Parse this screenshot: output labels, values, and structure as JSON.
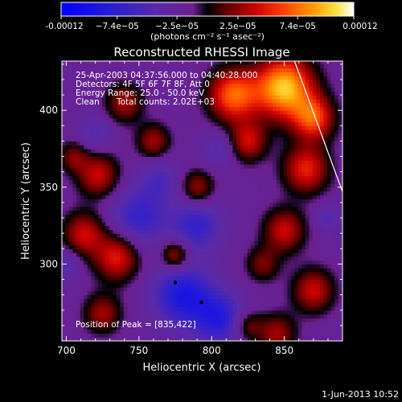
{
  "chart_data": {
    "type": "heatmap",
    "title": "Reconstructed RHESSI Image",
    "xlabel": "Heliocentric X (arcsec)",
    "ylabel": "Heliocentric Y (arcsec)",
    "xlim": [
      697,
      890
    ],
    "ylim": [
      250,
      432
    ],
    "x_ticks": [
      700,
      750,
      800,
      850
    ],
    "y_ticks": [
      300,
      350,
      400
    ],
    "colorbar": {
      "label": "(photons cm⁻² s⁻¹ asec⁻²)",
      "range": [
        -0.00012,
        0.00012
      ],
      "tick_labels": [
        "-0.00012",
        "−7.4e−05",
        "−2.5e−05",
        "2.5e−05",
        "7.4e−05",
        "0.00012"
      ],
      "tick_values": [
        -0.00012,
        -7.4e-05,
        -2.5e-05,
        2.5e-05,
        7.4e-05,
        0.00012
      ]
    },
    "annotations": {
      "time_range": "25-Apr-2003 04:37:56.000 to 04:40:28.000",
      "detectors": "Detectors: 4F 5F 6F 7F 8F, Att 0",
      "energy": "Energy Range: 25.0 - 50.0 keV",
      "clean": "Clean",
      "counts": "Total counts: 2.02E+03",
      "peak": "Position of Peak = [835,422]"
    },
    "peak": [
      835,
      422
    ],
    "limb_line": [
      [
        857,
        432
      ],
      [
        890,
        347
      ]
    ],
    "markers": [
      [
        775,
        288
      ],
      [
        793,
        275
      ]
    ],
    "sources": [
      {
        "x": 850,
        "y": 415,
        "amp": 0.00012,
        "s": 14
      },
      {
        "x": 815,
        "y": 410,
        "amp": 9e-05,
        "s": 12
      },
      {
        "x": 870,
        "y": 395,
        "amp": 8e-05,
        "s": 10
      },
      {
        "x": 865,
        "y": 362,
        "amp": 7e-05,
        "s": 11
      },
      {
        "x": 825,
        "y": 380,
        "amp": 6e-05,
        "s": 9
      },
      {
        "x": 740,
        "y": 405,
        "amp": 5e-05,
        "s": 9
      },
      {
        "x": 760,
        "y": 380,
        "amp": 5e-05,
        "s": 8
      },
      {
        "x": 722,
        "y": 358,
        "amp": 6e-05,
        "s": 10
      },
      {
        "x": 712,
        "y": 320,
        "amp": 6e-05,
        "s": 10
      },
      {
        "x": 735,
        "y": 305,
        "amp": 7e-05,
        "s": 11
      },
      {
        "x": 775,
        "y": 306,
        "amp": 6e-05,
        "s": 7
      },
      {
        "x": 790,
        "y": 350,
        "amp": 5e-05,
        "s": 8
      },
      {
        "x": 850,
        "y": 322,
        "amp": 6e-05,
        "s": 10
      },
      {
        "x": 870,
        "y": 283,
        "amp": 6e-05,
        "s": 10
      },
      {
        "x": 835,
        "y": 300,
        "amp": 4e-05,
        "s": 8
      },
      {
        "x": 725,
        "y": 268,
        "amp": 5e-05,
        "s": 9
      },
      {
        "x": 845,
        "y": 255,
        "amp": 5e-05,
        "s": 9
      },
      {
        "x": 825,
        "y": 260,
        "amp": 4e-05,
        "s": 7
      },
      {
        "x": 705,
        "y": 370,
        "amp": 4e-05,
        "s": 7
      },
      {
        "x": 805,
        "y": 265,
        "amp": -6e-05,
        "s": 12
      },
      {
        "x": 780,
        "y": 280,
        "amp": -7e-05,
        "s": 14
      },
      {
        "x": 750,
        "y": 330,
        "amp": -5e-05,
        "s": 14
      },
      {
        "x": 790,
        "y": 325,
        "amp": -5e-05,
        "s": 12
      },
      {
        "x": 765,
        "y": 355,
        "amp": -3e-05,
        "s": 10
      },
      {
        "x": 805,
        "y": 375,
        "amp": -3e-05,
        "s": 8
      },
      {
        "x": 720,
        "y": 385,
        "amp": -3e-05,
        "s": 8
      },
      {
        "x": 700,
        "y": 300,
        "amp": -3e-05,
        "s": 7
      },
      {
        "x": 880,
        "y": 330,
        "amp": -3e-05,
        "s": 6
      }
    ]
  },
  "footer": {
    "date": "1-Jun-2013 10:52"
  }
}
